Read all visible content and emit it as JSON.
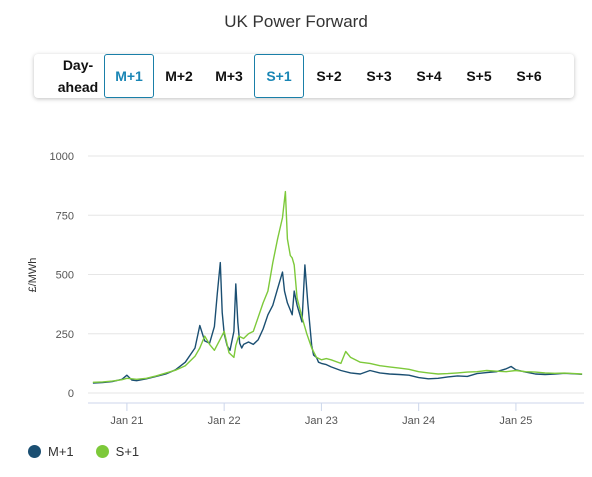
{
  "title": "UK Power Forward",
  "tabs": [
    {
      "id": "dayahead",
      "label": "Day-ahead",
      "active": false
    },
    {
      "id": "m1",
      "label": "M+1",
      "active": true
    },
    {
      "id": "m2",
      "label": "M+2",
      "active": false
    },
    {
      "id": "m3",
      "label": "M+3",
      "active": false
    },
    {
      "id": "s1",
      "label": "S+1",
      "active": true
    },
    {
      "id": "s2",
      "label": "S+2",
      "active": false
    },
    {
      "id": "s3",
      "label": "S+3",
      "active": false
    },
    {
      "id": "s4",
      "label": "S+4",
      "active": false
    },
    {
      "id": "s5",
      "label": "S+5",
      "active": false
    },
    {
      "id": "s6",
      "label": "S+6",
      "active": false
    }
  ],
  "colors": {
    "m1": "#1b4f72",
    "s1": "#7dc93a",
    "active_tab": "#1a86b5",
    "grid": "#e6e6e6"
  },
  "chart_data": {
    "type": "line",
    "title": "",
    "xlabel": "",
    "ylabel": "£/MWh",
    "ylim": [
      0,
      1000
    ],
    "yticks": [
      0,
      250,
      500,
      750,
      1000
    ],
    "xlim": [
      2020.6,
      2025.7
    ],
    "xticks": [
      {
        "value": 2021.0,
        "label": "Jan 21"
      },
      {
        "value": 2022.0,
        "label": "Jan 22"
      },
      {
        "value": 2023.0,
        "label": "Jan 23"
      },
      {
        "value": 2024.0,
        "label": "Jan 24"
      },
      {
        "value": 2025.0,
        "label": "Jan 25"
      }
    ],
    "grid": true,
    "legend": "bottom-left",
    "series": [
      {
        "name": "M+1",
        "color": "#1b4f72",
        "x": [
          2020.65,
          2020.75,
          2020.85,
          2020.95,
          2021.0,
          2021.05,
          2021.1,
          2021.2,
          2021.3,
          2021.4,
          2021.5,
          2021.6,
          2021.7,
          2021.75,
          2021.8,
          2021.85,
          2021.9,
          2021.93,
          2021.96,
          2021.98,
          2022.0,
          2022.03,
          2022.06,
          2022.1,
          2022.12,
          2022.14,
          2022.16,
          2022.18,
          2022.2,
          2022.25,
          2022.3,
          2022.35,
          2022.4,
          2022.45,
          2022.5,
          2022.55,
          2022.6,
          2022.62,
          2022.65,
          2022.7,
          2022.72,
          2022.75,
          2022.8,
          2022.83,
          2022.86,
          2022.9,
          2022.92,
          2022.95,
          2022.97,
          2023.0,
          2023.05,
          2023.1,
          2023.2,
          2023.3,
          2023.4,
          2023.5,
          2023.6,
          2023.7,
          2023.8,
          2023.9,
          2024.0,
          2024.1,
          2024.2,
          2024.3,
          2024.4,
          2024.5,
          2024.6,
          2024.7,
          2024.8,
          2024.9,
          2024.95,
          2025.0,
          2025.1,
          2025.2,
          2025.3,
          2025.4,
          2025.5,
          2025.6,
          2025.68
        ],
        "values": [
          42,
          44,
          48,
          58,
          75,
          55,
          52,
          60,
          70,
          80,
          98,
          130,
          190,
          285,
          220,
          210,
          280,
          420,
          550,
          340,
          250,
          200,
          180,
          260,
          460,
          300,
          210,
          190,
          205,
          215,
          205,
          225,
          270,
          330,
          370,
          440,
          510,
          430,
          380,
          330,
          430,
          370,
          300,
          540,
          380,
          200,
          160,
          150,
          130,
          125,
          120,
          110,
          95,
          85,
          80,
          95,
          85,
          80,
          78,
          75,
          65,
          60,
          62,
          68,
          72,
          70,
          82,
          86,
          90,
          102,
          112,
          98,
          88,
          80,
          78,
          80,
          83,
          81,
          79
        ]
      },
      {
        "name": "S+1",
        "color": "#7dc93a",
        "x": [
          2020.65,
          2020.75,
          2020.85,
          2020.95,
          2021.0,
          2021.1,
          2021.2,
          2021.3,
          2021.4,
          2021.5,
          2021.6,
          2021.7,
          2021.75,
          2021.8,
          2021.85,
          2021.9,
          2021.95,
          2022.0,
          2022.05,
          2022.1,
          2022.12,
          2022.15,
          2022.2,
          2022.25,
          2022.3,
          2022.35,
          2022.4,
          2022.45,
          2022.5,
          2022.55,
          2022.6,
          2022.63,
          2022.65,
          2022.68,
          2022.7,
          2022.72,
          2022.75,
          2022.8,
          2022.85,
          2022.9,
          2022.95,
          2023.0,
          2023.05,
          2023.1,
          2023.2,
          2023.25,
          2023.3,
          2023.4,
          2023.5,
          2023.6,
          2023.7,
          2023.8,
          2023.9,
          2024.0,
          2024.1,
          2024.2,
          2024.3,
          2024.4,
          2024.5,
          2024.6,
          2024.7,
          2024.8,
          2024.9,
          2025.0,
          2025.1,
          2025.2,
          2025.3,
          2025.4,
          2025.5,
          2025.6,
          2025.68
        ],
        "values": [
          45,
          47,
          50,
          56,
          62,
          58,
          62,
          72,
          84,
          96,
          115,
          155,
          190,
          240,
          205,
          180,
          220,
          260,
          170,
          150,
          200,
          240,
          230,
          250,
          260,
          320,
          380,
          430,
          550,
          650,
          740,
          850,
          650,
          580,
          570,
          540,
          400,
          320,
          250,
          190,
          150,
          140,
          145,
          140,
          125,
          175,
          150,
          130,
          125,
          115,
          110,
          105,
          100,
          90,
          85,
          80,
          82,
          85,
          88,
          90,
          95,
          92,
          90,
          95,
          90,
          88,
          85,
          83,
          84,
          82,
          80
        ]
      }
    ]
  }
}
